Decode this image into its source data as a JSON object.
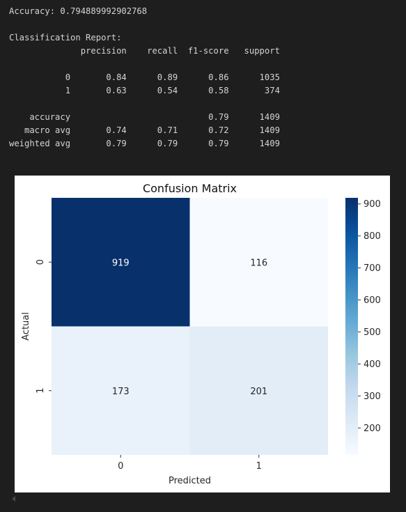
{
  "output": {
    "accuracy_line": "Accuracy: 0.794889992902768",
    "report_title": "Classification Report:",
    "report_header": [
      "precision",
      "recall",
      "f1-score",
      "support"
    ],
    "report_rows": [
      {
        "label": "0",
        "cells": [
          "0.84",
          "0.89",
          "0.86",
          "1035"
        ]
      },
      {
        "label": "1",
        "cells": [
          "0.63",
          "0.54",
          "0.58",
          "374"
        ]
      },
      {
        "label": "",
        "cells": [
          "",
          "",
          "",
          ""
        ]
      },
      {
        "label": "accuracy",
        "cells": [
          "",
          "",
          "0.79",
          "1409"
        ]
      },
      {
        "label": "macro avg",
        "cells": [
          "0.74",
          "0.71",
          "0.72",
          "1409"
        ]
      },
      {
        "label": "weighted avg",
        "cells": [
          "0.79",
          "0.79",
          "0.79",
          "1409"
        ]
      }
    ]
  },
  "chart_data": {
    "type": "heatmap",
    "title": "Confusion Matrix",
    "xlabel": "Predicted",
    "ylabel": "Actual",
    "x_categories": [
      "0",
      "1"
    ],
    "y_categories": [
      "0",
      "1"
    ],
    "values": [
      [
        919,
        116
      ],
      [
        173,
        201
      ]
    ],
    "colormap": "Blues",
    "vmin": 116,
    "vmax": 919,
    "colorbar_ticks": [
      200,
      300,
      400,
      500,
      600,
      700,
      800,
      900
    ],
    "colors": {
      "low": "#f7fbff",
      "high": "#08306b"
    }
  }
}
